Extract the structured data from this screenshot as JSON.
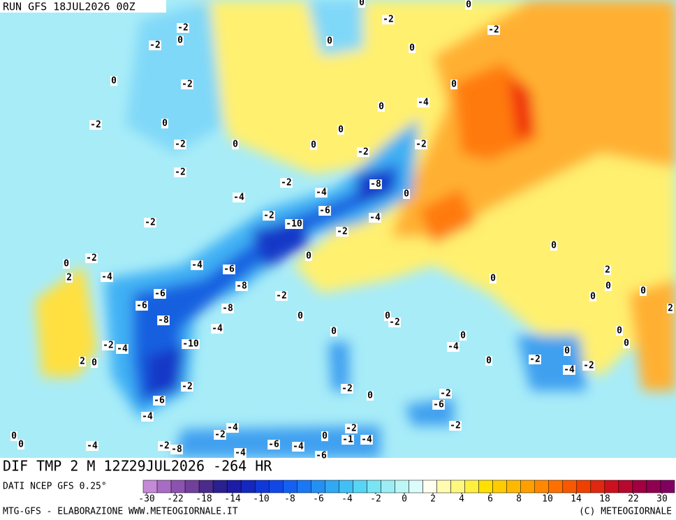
{
  "header": {
    "run": "RUN GFS 18JUL2026 00Z"
  },
  "footer": {
    "title": "DIF TMP 2 M 12Z29JUL2026 -264 HR",
    "source": "DATI NCEP GFS 0.25°",
    "credit": "MTG-GFS - ELABORAZIONE WWW.METEOGIORNALE.IT",
    "copyright": "(C) METEOGIORNALE"
  },
  "colorbar": {
    "colors": [
      "#c48ad8",
      "#a86cc4",
      "#8c52b0",
      "#70409c",
      "#4a2c8c",
      "#2a2090",
      "#1c1ca8",
      "#1428c0",
      "#1038d8",
      "#1048e8",
      "#1460f0",
      "#1a78f4",
      "#2490f4",
      "#30a8f4",
      "#40c0f4",
      "#58d4f4",
      "#78e4f4",
      "#9aeef4",
      "#bcf6f6",
      "#dcfcfc",
      "#fffff0",
      "#fffcb0",
      "#fff880",
      "#fff040",
      "#ffe000",
      "#ffcc00",
      "#ffb800",
      "#ffa000",
      "#ff8800",
      "#ff7000",
      "#f85800",
      "#f04000",
      "#e02810",
      "#cc1020",
      "#b80830",
      "#a00040",
      "#900050",
      "#800060"
    ],
    "ticks": [
      -30,
      -22,
      -18,
      -14,
      -10,
      -8,
      -6,
      -4,
      -2,
      0,
      2,
      4,
      6,
      8,
      10,
      14,
      18,
      22,
      30
    ]
  },
  "contour_labels": [
    -2,
    -2,
    0,
    0,
    -2,
    -2,
    0,
    -2,
    0,
    -2,
    -2,
    -4,
    -2,
    0,
    0,
    0,
    -2,
    -4,
    -2,
    -4,
    -6,
    -8,
    0,
    -4,
    -10,
    -2,
    -2,
    0,
    -6,
    -4,
    -8,
    -2,
    -8,
    -4,
    -6,
    -6,
    -8,
    -10,
    -2,
    -4,
    2,
    0,
    -2,
    -6,
    -4,
    -2,
    0,
    2,
    -4,
    0,
    0,
    0,
    -2,
    -2,
    0,
    0,
    -4,
    0,
    -2,
    -6,
    -2,
    0,
    0,
    2,
    0,
    0,
    0,
    2,
    0,
    0,
    0,
    -2,
    -4,
    -2,
    0,
    0,
    -2,
    0,
    0,
    0,
    -2,
    -4,
    -2,
    -8,
    -4,
    -2,
    -4,
    -6,
    -4,
    0,
    -2,
    -1,
    -4,
    -6,
    0,
    0
  ]
}
